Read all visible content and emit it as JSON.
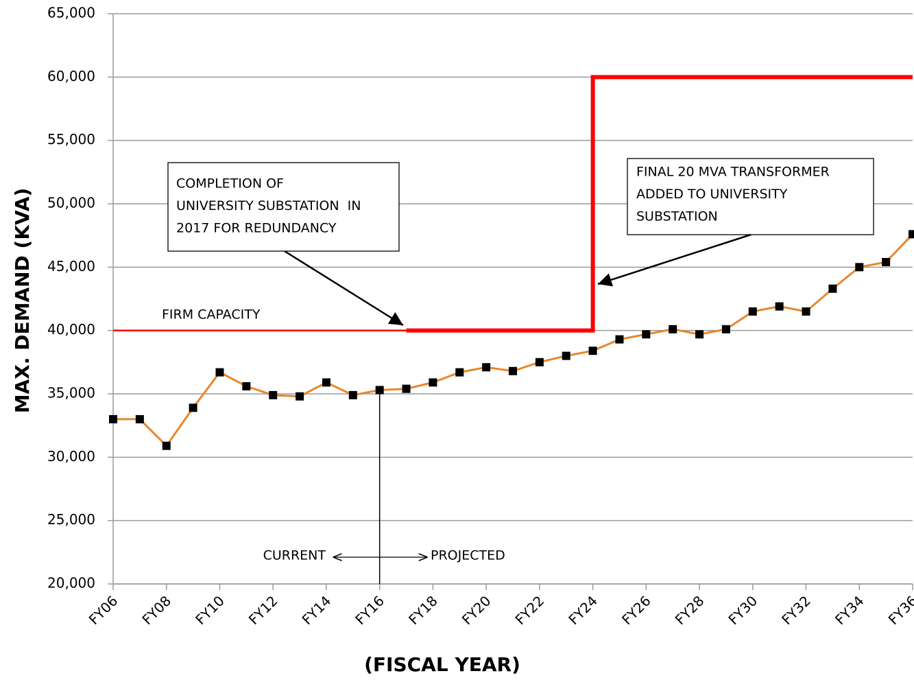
{
  "chart_data": {
    "type": "line",
    "ylabel": "MAX. DEMAND (KVA)",
    "xlabel": "(FISCAL YEAR)",
    "categories": [
      "FY06",
      null,
      "FY08",
      null,
      "FY10",
      null,
      "FY12",
      null,
      "FY14",
      null,
      "FY16",
      null,
      "FY18",
      null,
      "FY20",
      null,
      "FY22",
      null,
      "FY24",
      null,
      "FY26",
      null,
      "FY28",
      null,
      "FY30",
      null,
      "FY32",
      null,
      "FY34",
      null,
      "FY36"
    ],
    "series": [
      {
        "color": "#e8872a",
        "marker": "square",
        "linewidth": 3,
        "values": [
          33000,
          33000,
          30900,
          33900,
          36700,
          35600,
          34900,
          34800,
          35900,
          34900,
          35300,
          35400,
          35900,
          36700,
          37100,
          36800,
          37500,
          38000,
          38400,
          39300,
          39700,
          40100,
          39700,
          40100,
          41500,
          41900,
          41500,
          43300,
          45000,
          45400,
          47600
        ]
      },
      {
        "name": "FIRM CAPACITY",
        "color": "#ff0000",
        "step": "pre",
        "linewidth": 2.5,
        "values": [
          40000,
          40000,
          40000,
          40000,
          40000,
          40000,
          40000,
          40000,
          40000,
          40000,
          40000,
          40000,
          null,
          null,
          null,
          null,
          null,
          null,
          null,
          null,
          null,
          null,
          null,
          null,
          null,
          null,
          null,
          null,
          null,
          null,
          null
        ]
      },
      {
        "color": "#ff0000",
        "step": "pre",
        "linewidth": 6,
        "values": [
          null,
          null,
          null,
          null,
          null,
          null,
          null,
          null,
          null,
          null,
          null,
          40000,
          40000,
          40000,
          40000,
          40000,
          40000,
          40000,
          40000,
          60000,
          60000,
          60000,
          60000,
          60000,
          60000,
          60000,
          60000,
          60000,
          60000,
          60000,
          60000
        ]
      }
    ],
    "ylim": [
      20000,
      65000
    ],
    "yticks": [
      {
        "value": 20000,
        "label": "20,000"
      },
      {
        "value": 25000,
        "label": "25,000"
      },
      {
        "value": 30000,
        "label": "30,000"
      },
      {
        "value": 35000,
        "label": "35,000"
      },
      {
        "value": 40000,
        "label": "40,000"
      },
      {
        "value": 45000,
        "label": "45,000"
      },
      {
        "value": 50000,
        "label": "50,000"
      },
      {
        "value": 55000,
        "label": "55,000"
      },
      {
        "value": 60000,
        "label": "60,000"
      },
      {
        "value": 65000,
        "label": "65,000"
      }
    ],
    "grid": true,
    "annotations": [
      {
        "lines": [
          "COMPLETION OF",
          "UNIVERSITY SUBSTATION  IN",
          "2017 FOR REDUNDANCY"
        ]
      },
      {
        "lines": [
          "FINAL 20 MVA TRANSFORMER",
          "ADDED TO UNIVERSITY",
          "SUBSTATION"
        ]
      },
      {
        "text": "CURRENT"
      },
      {
        "text": "PROJECTED"
      }
    ]
  }
}
